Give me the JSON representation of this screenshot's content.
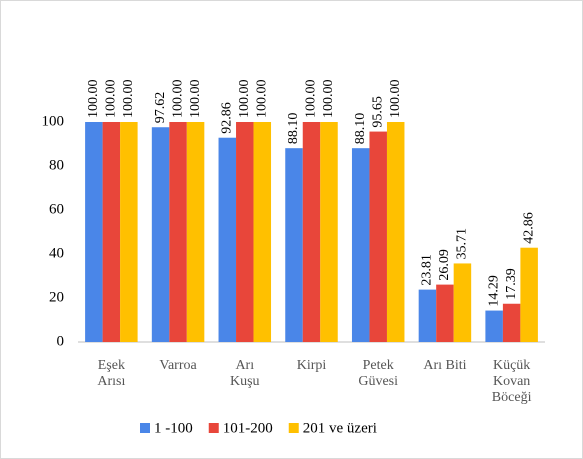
{
  "chart_data": {
    "type": "bar",
    "categories": [
      "Eşek\nArısı",
      "Varroa",
      "Arı\nKuşu",
      "Kirpi",
      "Petek\nGüvesi",
      "Arı Biti",
      "Küçük\nKovan\nBöceği"
    ],
    "series": [
      {
        "name": "1 -100",
        "color": "#4a86e8",
        "values": [
          100,
          97.62,
          92.86,
          88.1,
          88.1,
          23.81,
          14.29
        ],
        "value_labels": [
          "100.00",
          "97.62",
          "92.86",
          "88.10",
          "88.10",
          "23.81",
          "14.29"
        ]
      },
      {
        "name": "101-200",
        "color": "#e8463a",
        "values": [
          100,
          100,
          100,
          100,
          95.65,
          26.09,
          17.39
        ],
        "value_labels": [
          "100.00",
          "100.00",
          "100.00",
          "100.00",
          "95.65",
          "26.09",
          "17.39"
        ]
      },
      {
        "name": "201 ve üzeri",
        "color": "#ffc000",
        "values": [
          100,
          100,
          100,
          100,
          100,
          35.71,
          42.86
        ],
        "value_labels": [
          "100.00",
          "100.00",
          "100.00",
          "100.00",
          "100.00",
          "35.71",
          "42.86"
        ]
      }
    ],
    "ylim": [
      0,
      100
    ],
    "yticks": [
      0,
      20,
      40,
      60,
      80,
      100
    ],
    "grid": false,
    "legend": "bottom"
  }
}
